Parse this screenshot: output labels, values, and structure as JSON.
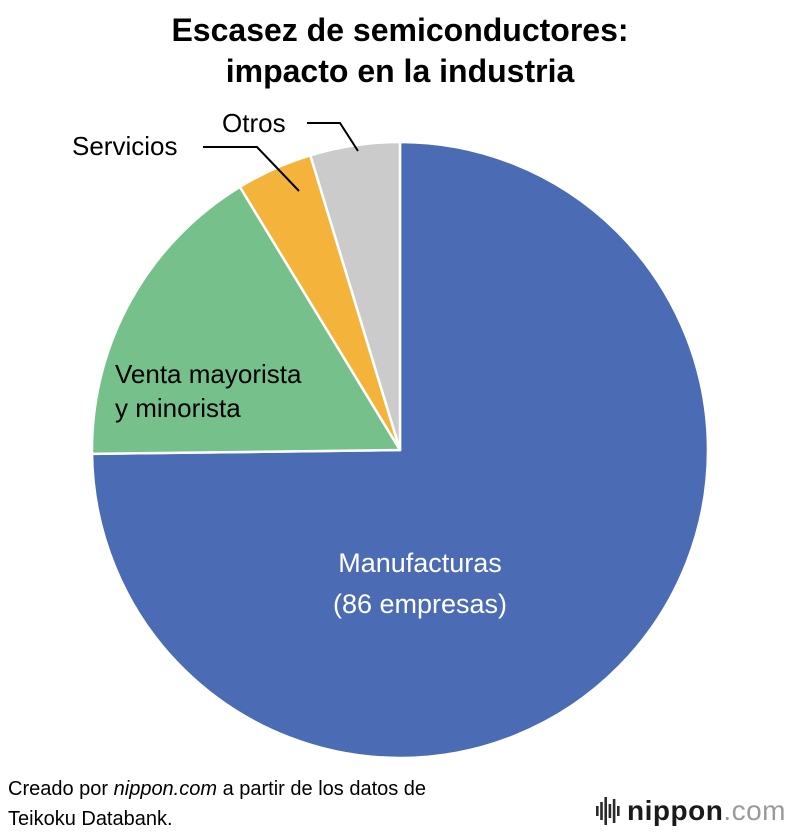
{
  "title": {
    "line1": "Escasez de semiconductores:",
    "line2": "impacto en la industria"
  },
  "chart_data": {
    "type": "pie",
    "title": "Escasez de semiconductores: impacto en la industria",
    "unit": "empresas",
    "direction": "clockwise",
    "start_angle_deg": 0,
    "legend_position": "labels-on-chart",
    "slices": [
      {
        "label": "Manufacturas",
        "sublabel": "(86 empresas)",
        "companies": 86,
        "value_pct": 74.8,
        "color": "#4b6cb4"
      },
      {
        "label": "Venta mayorista y minorista",
        "value_pct": 16.5,
        "color": "#75c08b"
      },
      {
        "label": "Servicios",
        "value_pct": 4.0,
        "color": "#f4b43c"
      },
      {
        "label": "Otros",
        "value_pct": 4.7,
        "color": "#cbcbcb"
      }
    ],
    "source": "Teikoku Databank"
  },
  "labels": {
    "manufacturas_line1": "Manufacturas",
    "manufacturas_line2": "(86 empresas)",
    "venta_line1": "Venta mayorista",
    "venta_line2": "y minorista",
    "servicios": "Servicios",
    "otros": "Otros"
  },
  "footer": {
    "prefix": "Creado por ",
    "brand": "nippon.com",
    "suffix": " a partir de los datos de",
    "line2": "Teikoku Databank."
  },
  "logo": {
    "name": "nippon",
    "tld": ".com",
    "icon": "soundwave-bars-icon"
  }
}
